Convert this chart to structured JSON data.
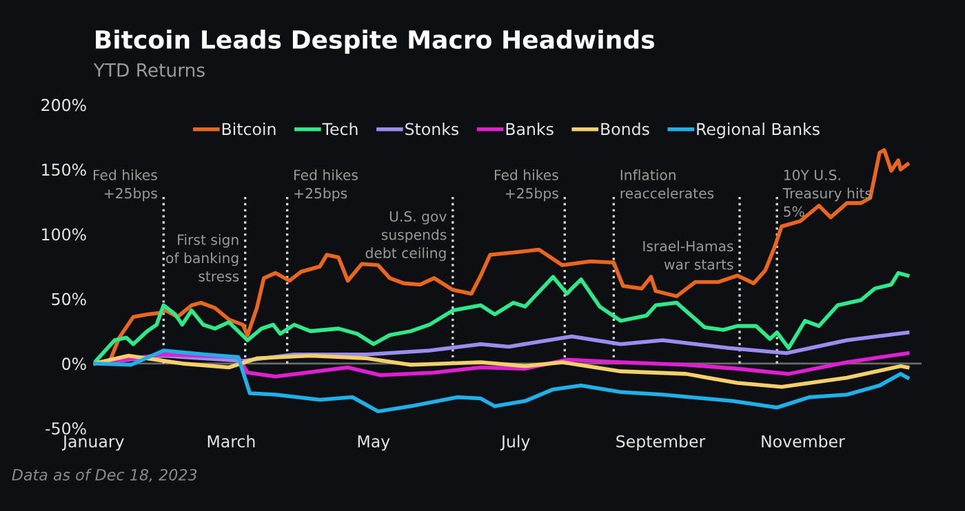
{
  "chart_data": {
    "type": "line",
    "title": "Bitcoin Leads Despite Macro Headwinds",
    "subtitle": "YTD Returns",
    "annotations": [
      "Data as of Dec 18, 2023"
    ],
    "series": [
      {
        "name": "Bitcoin",
        "color": "#e8661f",
        "x": [
          "2023-01-01",
          "2023-01-08",
          "2023-01-12",
          "2023-01-18",
          "2023-01-24",
          "2023-01-29",
          "2023-02-01",
          "2023-02-06",
          "2023-02-12",
          "2023-02-16",
          "2023-02-22",
          "2023-02-28",
          "2023-03-06",
          "2023-03-08",
          "2023-03-12",
          "2023-03-15",
          "2023-03-20",
          "2023-03-26",
          "2023-03-31",
          "2023-04-08",
          "2023-04-11",
          "2023-04-16",
          "2023-04-20",
          "2023-04-26",
          "2023-05-03",
          "2023-05-08",
          "2023-05-14",
          "2023-05-21",
          "2023-05-27",
          "2023-06-04",
          "2023-06-12",
          "2023-06-16",
          "2023-06-20",
          "2023-07-01",
          "2023-07-11",
          "2023-07-21",
          "2023-08-02",
          "2023-08-12",
          "2023-08-16",
          "2023-08-24",
          "2023-08-28",
          "2023-08-30",
          "2023-09-08",
          "2023-09-16",
          "2023-09-26",
          "2023-10-04",
          "2023-10-11",
          "2023-10-16",
          "2023-10-20",
          "2023-10-23",
          "2023-10-31",
          "2023-11-08",
          "2023-11-13",
          "2023-11-20",
          "2023-11-26",
          "2023-11-30",
          "2023-12-04",
          "2023-12-06",
          "2023-12-09",
          "2023-12-12",
          "2023-12-13",
          "2023-12-16"
        ],
        "values": [
          0,
          2,
          20,
          36,
          38,
          39,
          41,
          36,
          45,
          47,
          43,
          34,
          30,
          22,
          43,
          66,
          70,
          64,
          71,
          75,
          84,
          82,
          64,
          77,
          76,
          66,
          62,
          61,
          66,
          57,
          54,
          68,
          84,
          86,
          88,
          76,
          79,
          78,
          60,
          58,
          67,
          56,
          52,
          63,
          63,
          68,
          62,
          72,
          90,
          106,
          110,
          122,
          113,
          124,
          124,
          128,
          163,
          165,
          149,
          157,
          150,
          154
        ]
      },
      {
        "name": "Tech",
        "color": "#2ee88a",
        "x": [
          "2023-01-01",
          "2023-01-10",
          "2023-01-15",
          "2023-01-18",
          "2023-01-24",
          "2023-01-28",
          "2023-01-31",
          "2023-02-05",
          "2023-02-08",
          "2023-02-12",
          "2023-02-17",
          "2023-02-22",
          "2023-02-28",
          "2023-03-08",
          "2023-03-14",
          "2023-03-19",
          "2023-03-22",
          "2023-03-28",
          "2023-04-04",
          "2023-04-16",
          "2023-04-24",
          "2023-05-01",
          "2023-05-08",
          "2023-05-17",
          "2023-05-25",
          "2023-06-04",
          "2023-06-16",
          "2023-06-22",
          "2023-06-30",
          "2023-07-05",
          "2023-07-17",
          "2023-07-23",
          "2023-07-25",
          "2023-07-29",
          "2023-08-06",
          "2023-08-15",
          "2023-08-26",
          "2023-08-30",
          "2023-09-08",
          "2023-09-20",
          "2023-09-28",
          "2023-10-04",
          "2023-10-12",
          "2023-10-18",
          "2023-10-21",
          "2023-10-26",
          "2023-11-02",
          "2023-11-08",
          "2023-11-16",
          "2023-11-26",
          "2023-12-02",
          "2023-12-09",
          "2023-12-12",
          "2023-12-16"
        ],
        "values": [
          0,
          18,
          20,
          15,
          25,
          30,
          45,
          38,
          30,
          41,
          30,
          27,
          32,
          18,
          27,
          30,
          23,
          30,
          25,
          27,
          23,
          15,
          22,
          25,
          30,
          41,
          45,
          38,
          47,
          44,
          67,
          54,
          58,
          65,
          44,
          33,
          37,
          45,
          47,
          28,
          26,
          29,
          29,
          19,
          24,
          12,
          33,
          29,
          45,
          49,
          58,
          61,
          70,
          68
        ]
      },
      {
        "name": "Stonks",
        "color": "#9b8cf0",
        "x": [
          "2023-01-01",
          "2023-01-31",
          "2023-03-06",
          "2023-03-28",
          "2023-04-28",
          "2023-05-25",
          "2023-06-16",
          "2023-06-28",
          "2023-07-25",
          "2023-08-15",
          "2023-09-02",
          "2023-09-30",
          "2023-10-25",
          "2023-11-20",
          "2023-12-16"
        ],
        "values": [
          0,
          6,
          2,
          7,
          7,
          10,
          15,
          13,
          21,
          15,
          18,
          12,
          8,
          18,
          24
        ]
      },
      {
        "name": "Banks",
        "color": "#e020d0",
        "x": [
          "2023-01-01",
          "2023-01-31",
          "2023-03-04",
          "2023-03-08",
          "2023-03-20",
          "2023-04-20",
          "2023-05-04",
          "2023-05-27",
          "2023-06-16",
          "2023-07-05",
          "2023-07-23",
          "2023-08-15",
          "2023-09-12",
          "2023-10-04",
          "2023-10-26",
          "2023-11-20",
          "2023-12-16"
        ],
        "values": [
          0,
          7,
          5,
          -7,
          -10,
          -3,
          -9,
          -7,
          -3,
          -4,
          3,
          1,
          -1,
          -4,
          -8,
          1,
          8
        ]
      },
      {
        "name": "Bonds",
        "color": "#f5cf6a",
        "x": [
          "2023-01-01",
          "2023-01-16",
          "2023-02-08",
          "2023-02-28",
          "2023-03-12",
          "2023-04-04",
          "2023-04-28",
          "2023-05-17",
          "2023-06-16",
          "2023-07-05",
          "2023-07-21",
          "2023-08-15",
          "2023-09-12",
          "2023-10-04",
          "2023-10-23",
          "2023-11-20",
          "2023-12-13",
          "2023-12-16"
        ],
        "values": [
          0,
          6,
          0,
          -3,
          4,
          6,
          4,
          -1,
          1,
          -2,
          1,
          -6,
          -8,
          -15,
          -18,
          -11,
          -2,
          -3
        ]
      },
      {
        "name": "Regional Banks",
        "color": "#1fb0e8",
        "x": [
          "2023-01-01",
          "2023-01-17",
          "2023-01-31",
          "2023-02-18",
          "2023-03-04",
          "2023-03-09",
          "2023-03-20",
          "2023-04-08",
          "2023-04-22",
          "2023-05-03",
          "2023-05-17",
          "2023-06-06",
          "2023-06-16",
          "2023-06-22",
          "2023-07-05",
          "2023-07-17",
          "2023-07-29",
          "2023-08-15",
          "2023-09-02",
          "2023-10-02",
          "2023-10-21",
          "2023-11-04",
          "2023-11-20",
          "2023-12-04",
          "2023-12-13",
          "2023-12-16"
        ],
        "values": [
          0,
          -1,
          10,
          7,
          5,
          -23,
          -24,
          -28,
          -26,
          -37,
          -33,
          -26,
          -27,
          -33,
          -29,
          -20,
          -17,
          -22,
          -24,
          -29,
          -34,
          -26,
          -24,
          -17,
          -8,
          -11
        ]
      }
    ],
    "xlim": [
      "2023-01-01",
      "2023-12-22"
    ],
    "xticks": [
      {
        "value": "2023-01-01",
        "label": "January"
      },
      {
        "value": "2023-03-01",
        "label": "March"
      },
      {
        "value": "2023-05-01",
        "label": "May"
      },
      {
        "value": "2023-07-01",
        "label": "July"
      },
      {
        "value": "2023-09-01",
        "label": "September"
      },
      {
        "value": "2023-11-01",
        "label": "November"
      }
    ],
    "ylim": [
      -50,
      200
    ],
    "yticks": [
      {
        "value": -50,
        "label": "-50%"
      },
      {
        "value": 0,
        "label": "0%"
      },
      {
        "value": 50,
        "label": "50%"
      },
      {
        "value": 100,
        "label": "100%"
      },
      {
        "value": 150,
        "label": "150%"
      },
      {
        "value": 200,
        "label": "200%"
      }
    ],
    "ref_lines": [
      {
        "axis": "y",
        "value": 0,
        "color": "#6b6b6b",
        "line_style": "solid"
      },
      {
        "axis": "x",
        "value": "2023-01-31",
        "label": "Fed hikes\n+25bps",
        "color": "#d8d8d8",
        "line_style": "dotted"
      },
      {
        "axis": "x",
        "value": "2023-03-07",
        "label": "First sign\nof banking\nstress",
        "color": "#d8d8d8",
        "line_style": "dotted"
      },
      {
        "axis": "x",
        "value": "2023-03-25",
        "label": "Fed hikes\n+25bps",
        "color": "#d8d8d8",
        "line_style": "dotted"
      },
      {
        "axis": "x",
        "value": "2023-06-04",
        "label": "U.S. gov\nsuspends\ndebt ceiling",
        "color": "#d8d8d8",
        "line_style": "dotted"
      },
      {
        "axis": "x",
        "value": "2023-07-22",
        "label": "Fed hikes\n+25bps",
        "color": "#d8d8d8",
        "line_style": "dotted"
      },
      {
        "axis": "x",
        "value": "2023-08-12",
        "label": "Inflation\nreaccelerates",
        "color": "#d8d8d8",
        "line_style": "dotted"
      },
      {
        "axis": "x",
        "value": "2023-10-05",
        "label": "Israel-Hamas\nwar starts",
        "color": "#d8d8d8",
        "line_style": "dotted"
      },
      {
        "axis": "x",
        "value": "2023-10-21",
        "label": "10Y U.S.\nTreasury hits\n5%",
        "color": "#d8d8d8",
        "line_style": "dotted"
      }
    ],
    "legend": "top",
    "grid": false,
    "marker": "none",
    "line_style": "solid"
  }
}
